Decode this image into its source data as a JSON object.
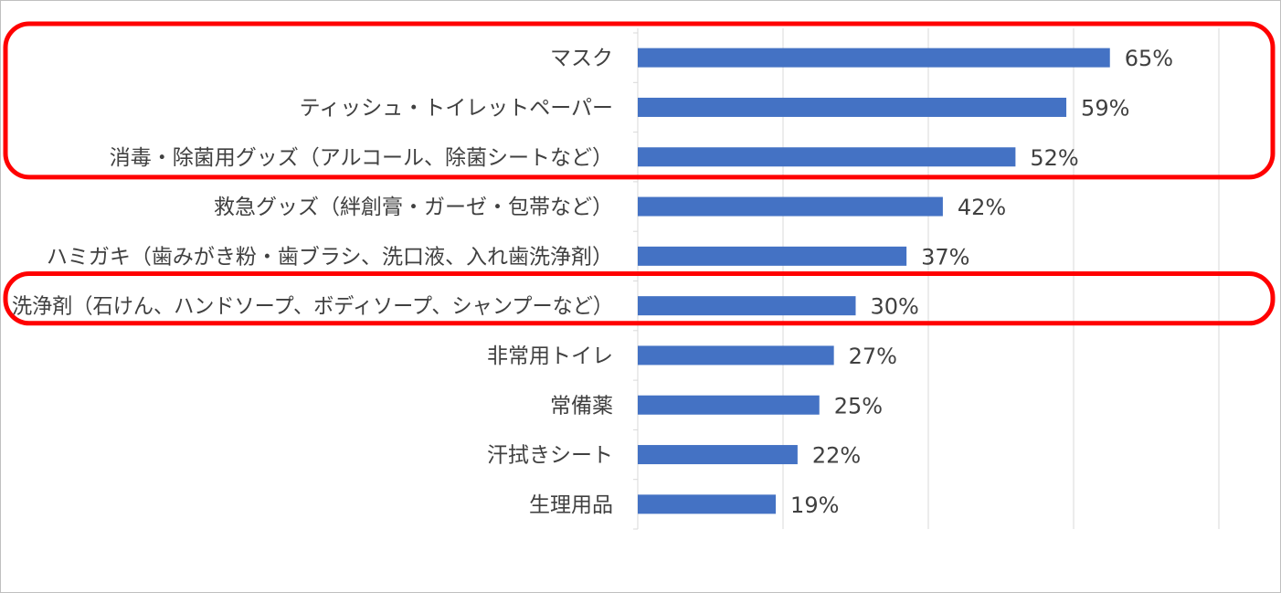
{
  "chart_data": {
    "type": "bar",
    "orientation": "horizontal",
    "categories": [
      "マスク",
      "ティッシュ・トイレットペーパー",
      "消毒・除菌用グッズ（アルコール、除菌シートなど）",
      "救急グッズ（絆創膏・ガーゼ・包帯など）",
      "ハミガキ（歯みがき粉・歯ブラシ、洗口液、入れ歯洗浄剤）",
      "洗浄剤（石けん、ハンドソープ、ボディソープ、シャンプーなど）",
      "非常用トイレ",
      "常備薬",
      "汗拭きシート",
      "生理用品"
    ],
    "values": [
      65,
      59,
      52,
      42,
      37,
      30,
      27,
      25,
      22,
      19
    ],
    "value_labels": [
      "65%",
      "59%",
      "52%",
      "42%",
      "37%",
      "30%",
      "27%",
      "25%",
      "22%",
      "19%"
    ],
    "unit": "%",
    "xlim": [
      0,
      80
    ],
    "x_gridlines": [
      0,
      20,
      40,
      60,
      80
    ],
    "grid": true,
    "bar_color": "#4472c4",
    "highlight_color": "#ff0000",
    "highlight_groups": [
      [
        0,
        1,
        2
      ],
      [
        5
      ]
    ]
  }
}
